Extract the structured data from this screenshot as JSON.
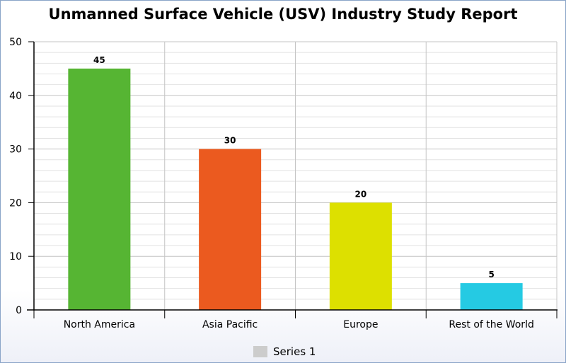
{
  "chart_data": {
    "type": "bar",
    "title": "Unmanned Surface Vehicle (USV) Industry Study Report",
    "categories": [
      "North America",
      "Asia Pacific",
      "Europe",
      "Rest of the World"
    ],
    "series": [
      {
        "name": "Series 1",
        "values": [
          45,
          30,
          20,
          5
        ]
      }
    ],
    "bar_colors": [
      "#56b533",
      "#eb5a1f",
      "#dde000",
      "#25cae3"
    ],
    "ylim": [
      0,
      50
    ],
    "yticks": [
      0,
      10,
      20,
      30,
      40,
      50
    ],
    "grid": true,
    "legend": "bottom-center",
    "legend_swatch_color": "#cccccc"
  }
}
